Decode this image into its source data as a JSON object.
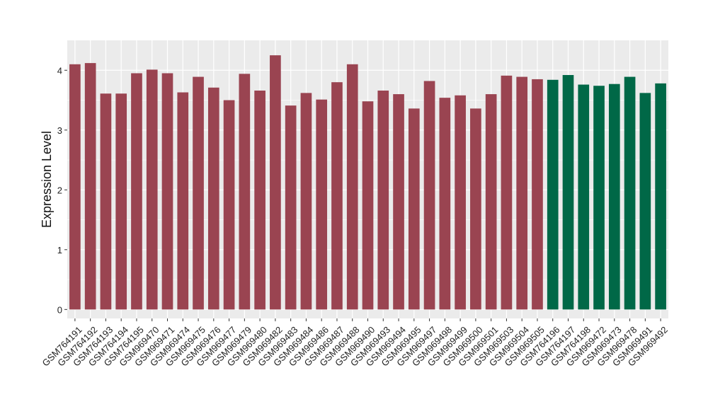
{
  "chart_data": {
    "type": "bar",
    "title": "",
    "xlabel": "",
    "ylabel": "Expression Level",
    "ylim": [
      -0.15,
      4.5
    ],
    "yticks": [
      0,
      1,
      2,
      3,
      4
    ],
    "grid": true,
    "legend": "none",
    "colors": {
      "group_a": "#9a4451",
      "group_b": "#006847",
      "panel_bg": "#ebebeb",
      "grid": "#ffffff"
    },
    "categories": [
      "GSM764191",
      "GSM764192",
      "GSM764193",
      "GSM764194",
      "GSM764195",
      "GSM969470",
      "GSM969471",
      "GSM969474",
      "GSM969475",
      "GSM969476",
      "GSM969477",
      "GSM969479",
      "GSM969480",
      "GSM969482",
      "GSM969483",
      "GSM969484",
      "GSM969486",
      "GSM969487",
      "GSM969488",
      "GSM969490",
      "GSM969493",
      "GSM969494",
      "GSM969495",
      "GSM969497",
      "GSM969498",
      "GSM969499",
      "GSM969500",
      "GSM969501",
      "GSM969503",
      "GSM969504",
      "GSM969505",
      "GSM764196",
      "GSM764197",
      "GSM764198",
      "GSM969472",
      "GSM969473",
      "GSM969478",
      "GSM969491",
      "GSM969492"
    ],
    "values": [
      4.1,
      4.12,
      3.61,
      3.61,
      3.95,
      4.01,
      3.95,
      3.63,
      3.89,
      3.71,
      3.5,
      3.94,
      3.66,
      4.25,
      3.41,
      3.62,
      3.51,
      3.8,
      4.1,
      3.48,
      3.66,
      3.6,
      3.36,
      3.82,
      3.54,
      3.58,
      3.36,
      3.6,
      3.91,
      3.89,
      3.85,
      3.84,
      3.92,
      3.76,
      3.74,
      3.77,
      3.89,
      3.62,
      3.78
    ],
    "groups": [
      "a",
      "a",
      "a",
      "a",
      "a",
      "a",
      "a",
      "a",
      "a",
      "a",
      "a",
      "a",
      "a",
      "a",
      "a",
      "a",
      "a",
      "a",
      "a",
      "a",
      "a",
      "a",
      "a",
      "a",
      "a",
      "a",
      "a",
      "a",
      "a",
      "a",
      "a",
      "b",
      "b",
      "b",
      "b",
      "b",
      "b",
      "b",
      "b"
    ]
  }
}
